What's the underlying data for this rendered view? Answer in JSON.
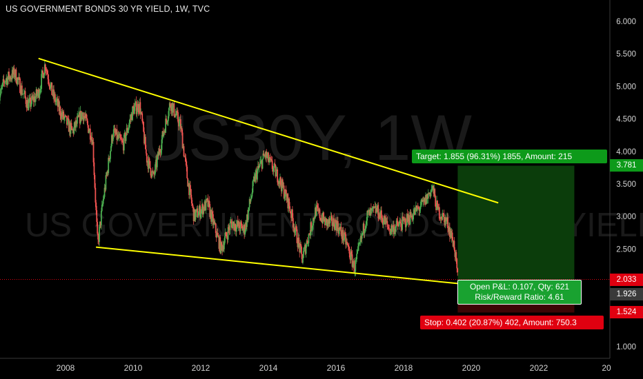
{
  "title": "US GOVERNMENT BONDS 30 YR YIELD, 1W, TVC",
  "watermark": {
    "symbol": "US30Y, 1W",
    "name": "US GOVERNMENT BONDS 30 YR YIELD"
  },
  "colors": {
    "background": "#000000",
    "up_candle": "#4caf50",
    "down_candle": "#ef5350",
    "trendline": "#ffff00",
    "target_zone": "#0b3d0b",
    "stop_zone": "#3d0505",
    "target_label": "#0d9a1a",
    "stop_label": "#e00010",
    "current_price_tag": "#e00010",
    "axis_text": "#d4d4d4"
  },
  "position": {
    "target_label": "Target: 1.855 (96.31%) 1855, Amount: 215",
    "stop_label": "Stop: 0.402 (20.87%) 402, Amount: 750.3",
    "pnl_line1": "Open P&L: 0.107, Qty: 621",
    "pnl_line2": "Risk/Reward Ratio: 4.61"
  },
  "axis_tags": {
    "target_price": "3.781",
    "current_price": "2.033",
    "entry_price": "1.926",
    "stop_price": "1.524"
  },
  "chart_data": {
    "type": "candlestick",
    "title": "US GOVERNMENT BONDS 30 YR YIELD, 1W, TVC",
    "symbol": "US30Y",
    "interval": "1W",
    "x_ticks": [
      "2008",
      "2010",
      "2012",
      "2014",
      "2016",
      "2018",
      "2020",
      "2022",
      "20"
    ],
    "y_ticks": [
      "1.000",
      "1.500",
      "2.000",
      "2.500",
      "3.000",
      "3.500",
      "4.000",
      "4.500",
      "5.000",
      "5.500",
      "6.000"
    ],
    "ylim": [
      0.95,
      6.25
    ],
    "xlim": [
      2006.0,
      2023.9
    ],
    "grid": false,
    "price_path": [
      [
        2006.0,
        4.75
      ],
      [
        2006.2,
        5.1
      ],
      [
        2006.5,
        5.2
      ],
      [
        2006.9,
        4.7
      ],
      [
        2007.2,
        4.9
      ],
      [
        2007.4,
        5.35
      ],
      [
        2007.6,
        4.9
      ],
      [
        2007.9,
        4.55
      ],
      [
        2008.2,
        4.3
      ],
      [
        2008.5,
        4.6
      ],
      [
        2008.8,
        4.2
      ],
      [
        2008.95,
        2.55
      ],
      [
        2009.1,
        3.2
      ],
      [
        2009.4,
        4.3
      ],
      [
        2009.7,
        4.1
      ],
      [
        2010.0,
        4.65
      ],
      [
        2010.2,
        4.7
      ],
      [
        2010.4,
        3.9
      ],
      [
        2010.6,
        3.6
      ],
      [
        2010.9,
        4.3
      ],
      [
        2011.1,
        4.75
      ],
      [
        2011.4,
        4.4
      ],
      [
        2011.6,
        3.6
      ],
      [
        2011.8,
        3.0
      ],
      [
        2012.2,
        3.2
      ],
      [
        2012.6,
        2.5
      ],
      [
        2012.9,
        2.9
      ],
      [
        2013.3,
        2.8
      ],
      [
        2013.6,
        3.6
      ],
      [
        2013.9,
        3.95
      ],
      [
        2014.3,
        3.6
      ],
      [
        2014.6,
        3.2
      ],
      [
        2015.0,
        2.35
      ],
      [
        2015.4,
        3.1
      ],
      [
        2015.7,
        2.9
      ],
      [
        2016.0,
        2.9
      ],
      [
        2016.3,
        2.6
      ],
      [
        2016.55,
        2.2
      ],
      [
        2016.9,
        3.0
      ],
      [
        2017.2,
        3.1
      ],
      [
        2017.6,
        2.8
      ],
      [
        2018.0,
        2.9
      ],
      [
        2018.3,
        3.05
      ],
      [
        2018.6,
        3.2
      ],
      [
        2018.85,
        3.45
      ],
      [
        2019.0,
        3.1
      ],
      [
        2019.3,
        2.9
      ],
      [
        2019.5,
        2.55
      ],
      [
        2019.6,
        2.03
      ]
    ],
    "trendlines": [
      {
        "from": [
          2007.2,
          5.43
        ],
        "to": [
          2020.8,
          3.21
        ]
      },
      {
        "from": [
          2008.9,
          2.53
        ],
        "to": [
          2019.6,
          1.97
        ]
      }
    ],
    "long_position": {
      "entry": 1.926,
      "target": 3.781,
      "stop": 1.524,
      "x_start": 2019.6,
      "x_end": 2023.05
    },
    "current_price": 2.033
  }
}
